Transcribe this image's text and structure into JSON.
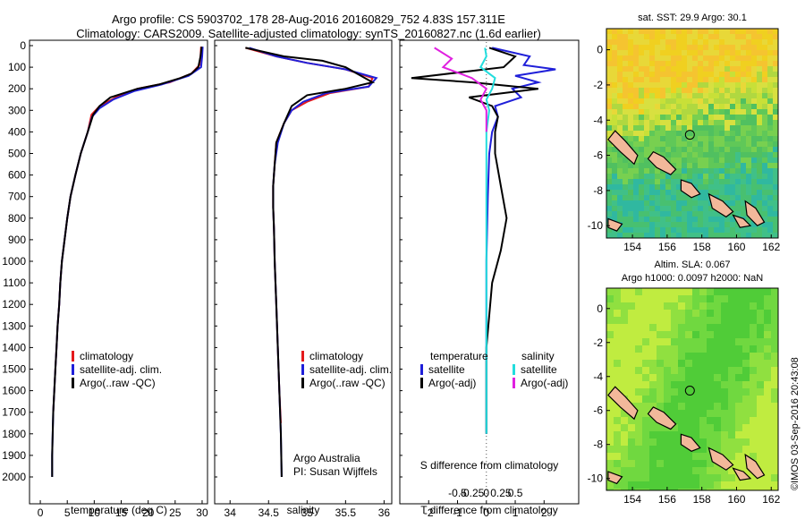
{
  "header": {
    "title_line1": "Argo profile: CS 5903702_178 28-Aug-2016 20160829_752 4.83S 157.311E",
    "title_line2": "Climatology: CARS2009. Satellite-adjusted climatology: synTS_20160827.nc (1.6d earlier)"
  },
  "credit": "©IMOS 03-Sep-2016 20:43:08",
  "colors": {
    "climatology": "#e41a1c",
    "satellite": "#1f1fd9",
    "argo": "#000000",
    "sat_s": "#22dddd",
    "argo_s": "#e020e0",
    "land": "#f2b89a"
  },
  "panels": {
    "temperature": {
      "xlabel": "temperature (deg C)",
      "legend": [
        "climatology",
        "satellite-adj. clim.",
        "Argo(..raw -QC)"
      ]
    },
    "salinity": {
      "xlabel": "salinity",
      "legend": [
        "climatology",
        "satellite-adj. clim.",
        "Argo(..raw -QC)"
      ],
      "note_line1": "Argo Australia",
      "note_line2": "PI: Susan Wijffels"
    },
    "difference": {
      "top_xlabel": "S difference from climatology",
      "bottom_xlabel": "T difference from climatology",
      "legend_t_title": "temperature",
      "legend_s_title": "salinity",
      "legend_t": [
        "satellite",
        "Argo(-adj)"
      ],
      "legend_s": [
        "satellite",
        "Argo(-adj)"
      ]
    }
  },
  "maps": {
    "sst": {
      "title": "sat. SST: 29.9 Argo: 30.1"
    },
    "sla": {
      "title_line1": "Altim. SLA: 0.067",
      "title_line2": "Argo h1000: 0.0097 h2000: NaN"
    }
  },
  "chart_data": [
    {
      "type": "line",
      "title": "",
      "xlabel": "temperature (deg C)",
      "ylabel": "",
      "xlim": [
        -2,
        31
      ],
      "ylim": [
        2100,
        0
      ],
      "xticks": [
        0,
        5,
        10,
        15,
        20,
        25,
        30
      ],
      "yticks": [
        0,
        100,
        200,
        300,
        400,
        500,
        600,
        700,
        800,
        900,
        1000,
        1100,
        1200,
        1300,
        1400,
        1500,
        1600,
        1700,
        1800,
        1900,
        2000
      ],
      "series": [
        {
          "name": "climatology",
          "color": "#e41a1c",
          "points": [
            [
              29.8,
              5
            ],
            [
              29.7,
              50
            ],
            [
              29.5,
              90
            ],
            [
              28,
              130
            ],
            [
              24,
              170
            ],
            [
              18,
              200
            ],
            [
              14,
              240
            ],
            [
              11,
              280
            ],
            [
              9.5,
              320
            ],
            [
              8.8,
              400
            ],
            [
              7.5,
              500
            ],
            [
              6.5,
              600
            ],
            [
              5.6,
              700
            ],
            [
              5,
              800
            ],
            [
              4.5,
              900
            ],
            [
              4,
              1000
            ],
            [
              3.7,
              1100
            ],
            [
              3.5,
              1200
            ],
            [
              3.2,
              1300
            ],
            [
              3,
              1400
            ],
            [
              2.8,
              1500
            ],
            [
              2.6,
              1600
            ],
            [
              2.4,
              1700
            ]
          ]
        },
        {
          "name": "satellite-adj. clim.",
          "color": "#1f1fd9",
          "points": [
            [
              30.1,
              5
            ],
            [
              30,
              50
            ],
            [
              29.8,
              100
            ],
            [
              27.5,
              140
            ],
            [
              22.5,
              180
            ],
            [
              17.5,
              210
            ],
            [
              13.5,
              250
            ],
            [
              11,
              290
            ],
            [
              9.6,
              330
            ],
            [
              8.8,
              400
            ],
            [
              7.5,
              500
            ],
            [
              6.5,
              600
            ],
            [
              5.6,
              700
            ],
            [
              5,
              800
            ],
            [
              4.5,
              900
            ],
            [
              4,
              1000
            ],
            [
              3.7,
              1100
            ],
            [
              3.5,
              1200
            ],
            [
              3.2,
              1300
            ],
            [
              3,
              1400
            ],
            [
              2.8,
              1500
            ],
            [
              2.6,
              1600
            ],
            [
              2.4,
              1700
            ],
            [
              2.3,
              1800
            ],
            [
              2.2,
              1900
            ],
            [
              2.2,
              2000
            ]
          ]
        },
        {
          "name": "Argo(..raw -QC)",
          "color": "#000000",
          "points": [
            [
              29.9,
              5
            ],
            [
              29.7,
              50
            ],
            [
              29.3,
              100
            ],
            [
              28,
              130
            ],
            [
              26,
              150
            ],
            [
              22,
              180
            ],
            [
              18,
              200
            ],
            [
              13,
              240
            ],
            [
              11,
              280
            ],
            [
              9.8,
              320
            ],
            [
              8.8,
              400
            ],
            [
              7.5,
              500
            ],
            [
              6.5,
              600
            ],
            [
              5.6,
              700
            ],
            [
              5,
              800
            ],
            [
              4.5,
              900
            ],
            [
              4,
              1000
            ],
            [
              3.7,
              1100
            ],
            [
              3.5,
              1200
            ],
            [
              3.2,
              1300
            ],
            [
              3,
              1400
            ],
            [
              2.8,
              1500
            ],
            [
              2.6,
              1600
            ],
            [
              2.4,
              1700
            ],
            [
              2.3,
              1800
            ],
            [
              2.2,
              1900
            ],
            [
              2.2,
              2000
            ]
          ]
        }
      ]
    },
    {
      "type": "line",
      "title": "",
      "xlabel": "salinity",
      "ylabel": "",
      "xlim": [
        33.8,
        36.1
      ],
      "ylim": [
        2100,
        0
      ],
      "xticks": [
        34,
        34.5,
        35,
        35.5,
        36
      ],
      "yticks": [],
      "series": [
        {
          "name": "climatology",
          "color": "#e41a1c",
          "points": [
            [
              34.2,
              10
            ],
            [
              34.6,
              50
            ],
            [
              35,
              80
            ],
            [
              35.5,
              110
            ],
            [
              35.85,
              150
            ],
            [
              35.8,
              190
            ],
            [
              35.3,
              220
            ],
            [
              35,
              260
            ],
            [
              34.8,
              300
            ],
            [
              34.7,
              360
            ],
            [
              34.6,
              450
            ],
            [
              34.58,
              550
            ],
            [
              34.56,
              650
            ],
            [
              34.56,
              750
            ],
            [
              34.57,
              850
            ],
            [
              34.58,
              1000
            ],
            [
              34.6,
              1200
            ],
            [
              34.62,
              1400
            ],
            [
              34.64,
              1600
            ],
            [
              34.66,
              1750
            ]
          ]
        },
        {
          "name": "satellite-adj. clim.",
          "color": "#1f1fd9",
          "points": [
            [
              34.25,
              10
            ],
            [
              34.6,
              50
            ],
            [
              35,
              80
            ],
            [
              35.5,
              110
            ],
            [
              35.9,
              150
            ],
            [
              35.8,
              190
            ],
            [
              35.25,
              220
            ],
            [
              34.95,
              260
            ],
            [
              34.8,
              300
            ],
            [
              34.7,
              360
            ],
            [
              34.62,
              450
            ],
            [
              34.58,
              550
            ],
            [
              34.56,
              650
            ],
            [
              34.56,
              750
            ],
            [
              34.57,
              850
            ],
            [
              34.58,
              1000
            ],
            [
              34.6,
              1200
            ],
            [
              34.62,
              1400
            ],
            [
              34.64,
              1600
            ],
            [
              34.66,
              1800
            ],
            [
              34.67,
              2000
            ]
          ]
        },
        {
          "name": "Argo(..raw -QC)",
          "color": "#000000",
          "points": [
            [
              34.2,
              10
            ],
            [
              34.7,
              50
            ],
            [
              35.2,
              70
            ],
            [
              35.5,
              100
            ],
            [
              35.7,
              140
            ],
            [
              35.85,
              170
            ],
            [
              35.5,
              200
            ],
            [
              35,
              230
            ],
            [
              34.8,
              280
            ],
            [
              34.7,
              360
            ],
            [
              34.6,
              450
            ],
            [
              34.58,
              550
            ],
            [
              34.56,
              650
            ],
            [
              34.56,
              750
            ],
            [
              34.57,
              850
            ],
            [
              34.58,
              1000
            ],
            [
              34.6,
              1200
            ],
            [
              34.62,
              1400
            ],
            [
              34.64,
              1600
            ],
            [
              34.66,
              1800
            ],
            [
              34.67,
              2000
            ]
          ]
        }
      ]
    },
    {
      "type": "line",
      "title": "",
      "xlabel": "T difference from climatology",
      "ylabel": "",
      "xlim": [
        -3,
        3.2
      ],
      "ylim": [
        2100,
        0
      ],
      "xticks": [
        -2,
        -1,
        0,
        1,
        2
      ],
      "top_xlabel": "S difference from climatology",
      "top_xticks": [
        -0.5,
        -0.25,
        0,
        0.25,
        0.5
      ],
      "series": [
        {
          "name": "temperature satellite",
          "color": "#1f1fd9",
          "points": [
            [
              0.2,
              10
            ],
            [
              1.5,
              50
            ],
            [
              1.3,
              90
            ],
            [
              2.4,
              110
            ],
            [
              1,
              140
            ],
            [
              1.8,
              170
            ],
            [
              0.9,
              200
            ],
            [
              1.2,
              240
            ],
            [
              0.3,
              280
            ],
            [
              0.4,
              330
            ],
            [
              0.2,
              400
            ],
            [
              0.1,
              500
            ],
            [
              0.05,
              700
            ],
            [
              0,
              1000
            ],
            [
              0,
              1500
            ],
            [
              0,
              1800
            ]
          ]
        },
        {
          "name": "temperature Argo(-adj)",
          "color": "#000000",
          "points": [
            [
              0.1,
              10
            ],
            [
              1,
              50
            ],
            [
              0.6,
              100
            ],
            [
              -2.6,
              150
            ],
            [
              -0.5,
              170
            ],
            [
              1.8,
              200
            ],
            [
              -0.6,
              240
            ],
            [
              0.2,
              280
            ],
            [
              0.4,
              330
            ],
            [
              0.3,
              400
            ],
            [
              0.3,
              500
            ],
            [
              0.5,
              650
            ],
            [
              0.7,
              800
            ],
            [
              0.5,
              950
            ],
            [
              0.2,
              1100
            ],
            [
              0.1,
              1250
            ],
            [
              0,
              1400
            ],
            [
              0,
              1700
            ],
            [
              0,
              1800
            ]
          ]
        },
        {
          "name": "salinity satellite",
          "color": "#22dddd",
          "points": [
            [
              -0.05,
              10
            ],
            [
              0,
              50
            ],
            [
              -0.2,
              100
            ],
            [
              0.3,
              150
            ],
            [
              0.2,
              200
            ],
            [
              0,
              250
            ],
            [
              0.1,
              300
            ],
            [
              0,
              400
            ],
            [
              0,
              800
            ],
            [
              0,
              1200
            ],
            [
              0,
              1800
            ]
          ]
        },
        {
          "name": "salinity Argo(-adj)",
          "color": "#e020e0",
          "points": [
            [
              -1.8,
              10
            ],
            [
              -1.2,
              60
            ],
            [
              -1.5,
              100
            ],
            [
              -0.5,
              150
            ],
            [
              0,
              200
            ],
            [
              -0.2,
              250
            ],
            [
              0,
              300
            ],
            [
              0,
              400
            ]
          ]
        }
      ]
    },
    {
      "type": "heatmap",
      "title": "sat. SST: 29.9 Argo: 30.1",
      "xlim": [
        152.5,
        162.4
      ],
      "ylim": [
        -10.7,
        1.2
      ],
      "xticks": [
        154,
        156,
        158,
        160,
        162
      ],
      "yticks": [
        0,
        -2,
        -4,
        -6,
        -8,
        -10
      ],
      "marker": [
        157.311,
        -4.83
      ]
    },
    {
      "type": "heatmap",
      "title": "Altim. SLA: 0.067",
      "xlim": [
        152.5,
        162.4
      ],
      "ylim": [
        -10.7,
        1.2
      ],
      "xticks": [
        154,
        156,
        158,
        160,
        162
      ],
      "yticks": [
        0,
        -2,
        -4,
        -6,
        -8,
        -10
      ],
      "marker": [
        157.311,
        -4.83
      ]
    }
  ]
}
